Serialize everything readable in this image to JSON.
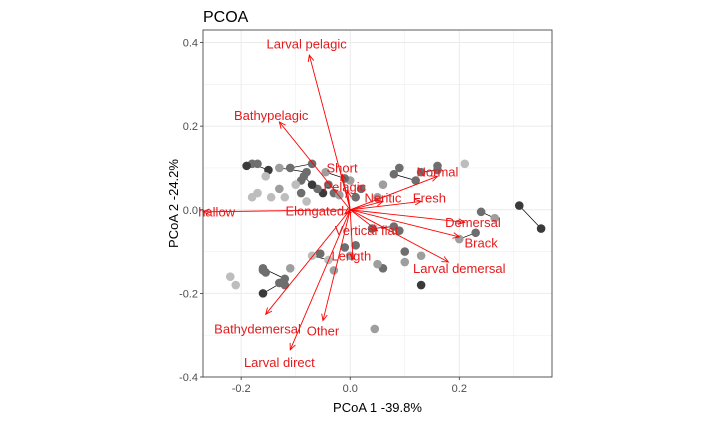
{
  "chart_data": {
    "type": "scatter",
    "title": "PCOA",
    "xlabel": "PCoA 1 -39.8%",
    "ylabel": "PCoA 2 -24.2%",
    "xlim": [
      -0.27,
      0.37
    ],
    "ylim": [
      -0.4,
      0.43
    ],
    "xticks": [
      -0.2,
      0.0,
      0.2
    ],
    "xtick_labels": [
      "-0.2",
      "0.0",
      "0.2"
    ],
    "yticks": [
      -0.4,
      -0.2,
      0.0,
      0.2,
      0.4
    ],
    "ytick_labels": [
      "-0.4",
      "-0.2",
      "0.0",
      "0.2",
      "0.4"
    ],
    "grid": true,
    "colors": {
      "arrow": "#ff0000",
      "label": "#e41a1c",
      "grid": "#ebebeb",
      "panel_border": "#333333",
      "segment": "#000000"
    },
    "loadings": [
      {
        "label": "Larval pelagic",
        "x": -0.075,
        "y": 0.37,
        "lx": -0.08,
        "ly": 0.397
      },
      {
        "label": "Bathypelagic",
        "x": -0.13,
        "y": 0.21,
        "lx": -0.145,
        "ly": 0.225
      },
      {
        "label": "Short",
        "x": -0.015,
        "y": 0.085,
        "lx": -0.015,
        "ly": 0.1
      },
      {
        "label": "Normal",
        "x": 0.16,
        "y": 0.08,
        "lx": 0.16,
        "ly": 0.09
      },
      {
        "label": "Pelagic",
        "x": -0.005,
        "y": 0.045,
        "lx": -0.01,
        "ly": 0.055
      },
      {
        "label": "Neritic",
        "x": 0.06,
        "y": 0.02,
        "lx": 0.06,
        "ly": 0.028
      },
      {
        "label": "Fresh",
        "x": 0.13,
        "y": 0.02,
        "lx": 0.145,
        "ly": 0.028
      },
      {
        "label": "hallow",
        "x": -0.27,
        "y": -0.005,
        "lx": -0.245,
        "ly": -0.005
      },
      {
        "label": "Elongated",
        "x": -0.01,
        "y": -0.01,
        "lx": -0.065,
        "ly": -0.003
      },
      {
        "label": "Demersal",
        "x": 0.21,
        "y": -0.03,
        "lx": 0.225,
        "ly": -0.03
      },
      {
        "label": "Brack",
        "x": 0.2,
        "y": -0.065,
        "lx": 0.24,
        "ly": -0.08
      },
      {
        "label": "Vertical flat",
        "x": 0.05,
        "y": -0.05,
        "lx": 0.03,
        "ly": -0.05
      },
      {
        "label": "Length",
        "x": 0.005,
        "y": -0.12,
        "lx": 0.002,
        "ly": -0.11
      },
      {
        "label": "Larval demersal",
        "x": 0.18,
        "y": -0.125,
        "lx": 0.2,
        "ly": -0.14
      },
      {
        "label": "Bathydemersal",
        "x": -0.155,
        "y": -0.25,
        "lx": -0.17,
        "ly": -0.285
      },
      {
        "label": "Other",
        "x": -0.05,
        "y": -0.265,
        "lx": -0.05,
        "ly": -0.29
      },
      {
        "label": "Larval direct",
        "x": -0.11,
        "y": -0.335,
        "lx": -0.13,
        "ly": -0.365
      }
    ],
    "segments": [
      {
        "x1": -0.18,
        "y1": 0.11,
        "x2": -0.15,
        "y2": 0.095
      },
      {
        "x1": -0.13,
        "y1": 0.1,
        "x2": -0.08,
        "y2": 0.09
      },
      {
        "x1": -0.11,
        "y1": 0.1,
        "x2": -0.07,
        "y2": 0.11
      },
      {
        "x1": -0.045,
        "y1": 0.09,
        "x2": -0.01,
        "y2": 0.075
      },
      {
        "x1": 0.08,
        "y1": 0.085,
        "x2": 0.12,
        "y2": 0.07
      },
      {
        "x1": 0.13,
        "y1": 0.09,
        "x2": 0.16,
        "y2": 0.095
      },
      {
        "x1": 0.31,
        "y1": 0.01,
        "x2": 0.35,
        "y2": -0.045
      },
      {
        "x1": 0.24,
        "y1": -0.005,
        "x2": 0.265,
        "y2": -0.02
      },
      {
        "x1": 0.2,
        "y1": -0.07,
        "x2": 0.23,
        "y2": -0.055
      },
      {
        "x1": 0.04,
        "y1": -0.045,
        "x2": 0.08,
        "y2": -0.04
      },
      {
        "x1": -0.16,
        "y1": -0.14,
        "x2": -0.12,
        "y2": -0.165
      },
      {
        "x1": -0.16,
        "y1": -0.2,
        "x2": -0.12,
        "y2": -0.17
      },
      {
        "x1": -0.07,
        "y1": -0.11,
        "x2": -0.04,
        "y2": -0.12
      },
      {
        "x1": -0.085,
        "y1": 0.08,
        "x2": -0.07,
        "y2": 0.06
      }
    ],
    "points": [
      {
        "x": -0.22,
        "y": -0.16,
        "shade": "#bdbdbd"
      },
      {
        "x": -0.21,
        "y": -0.18,
        "shade": "#bdbdbd"
      },
      {
        "x": -0.16,
        "y": -0.14,
        "shade": "#6e6e6e"
      },
      {
        "x": -0.16,
        "y": -0.145,
        "shade": "#6e6e6e"
      },
      {
        "x": -0.155,
        "y": -0.15,
        "shade": "#6e6e6e"
      },
      {
        "x": -0.16,
        "y": -0.2,
        "shade": "#3a3a3a"
      },
      {
        "x": -0.13,
        "y": -0.175,
        "shade": "#6e6e6e"
      },
      {
        "x": -0.12,
        "y": -0.165,
        "shade": "#6e6e6e"
      },
      {
        "x": -0.12,
        "y": -0.18,
        "shade": "#6e6e6e"
      },
      {
        "x": -0.11,
        "y": -0.14,
        "shade": "#9e9e9e"
      },
      {
        "x": -0.07,
        "y": -0.11,
        "shade": "#bdbdbd"
      },
      {
        "x": -0.04,
        "y": -0.12,
        "shade": "#bdbdbd"
      },
      {
        "x": -0.055,
        "y": -0.105,
        "shade": "#6e6e6e"
      },
      {
        "x": -0.03,
        "y": -0.145,
        "shade": "#9e9e9e"
      },
      {
        "x": -0.01,
        "y": -0.09,
        "shade": "#6e6e6e"
      },
      {
        "x": 0.0,
        "y": -0.11,
        "shade": "#9e9e9e"
      },
      {
        "x": 0.01,
        "y": -0.085,
        "shade": "#6e6e6e"
      },
      {
        "x": 0.045,
        "y": -0.285,
        "shade": "#9e9e9e"
      },
      {
        "x": 0.06,
        "y": -0.14,
        "shade": "#6e6e6e"
      },
      {
        "x": 0.05,
        "y": -0.13,
        "shade": "#9e9e9e"
      },
      {
        "x": 0.1,
        "y": -0.1,
        "shade": "#6e6e6e"
      },
      {
        "x": 0.1,
        "y": -0.125,
        "shade": "#9e9e9e"
      },
      {
        "x": 0.13,
        "y": -0.11,
        "shade": "#9e9e9e"
      },
      {
        "x": 0.13,
        "y": -0.18,
        "shade": "#3a3a3a"
      },
      {
        "x": 0.04,
        "y": -0.045,
        "shade": "#6e6e6e"
      },
      {
        "x": 0.08,
        "y": -0.04,
        "shade": "#6e6e6e"
      },
      {
        "x": 0.09,
        "y": -0.05,
        "shade": "#6e6e6e"
      },
      {
        "x": 0.2,
        "y": -0.07,
        "shade": "#9e9e9e"
      },
      {
        "x": 0.23,
        "y": -0.055,
        "shade": "#6e6e6e"
      },
      {
        "x": 0.24,
        "y": -0.005,
        "shade": "#6e6e6e"
      },
      {
        "x": 0.265,
        "y": -0.02,
        "shade": "#9e9e9e"
      },
      {
        "x": 0.31,
        "y": 0.01,
        "shade": "#3a3a3a"
      },
      {
        "x": 0.35,
        "y": -0.045,
        "shade": "#3a3a3a"
      },
      {
        "x": 0.21,
        "y": 0.11,
        "shade": "#bdbdbd"
      },
      {
        "x": 0.16,
        "y": 0.105,
        "shade": "#6e6e6e"
      },
      {
        "x": 0.13,
        "y": 0.09,
        "shade": "#6e6e6e"
      },
      {
        "x": 0.16,
        "y": 0.095,
        "shade": "#6e6e6e"
      },
      {
        "x": 0.12,
        "y": 0.07,
        "shade": "#6e6e6e"
      },
      {
        "x": 0.08,
        "y": 0.085,
        "shade": "#6e6e6e"
      },
      {
        "x": 0.09,
        "y": 0.1,
        "shade": "#6e6e6e"
      },
      {
        "x": 0.06,
        "y": 0.06,
        "shade": "#9e9e9e"
      },
      {
        "x": 0.05,
        "y": 0.03,
        "shade": "#9e9e9e"
      },
      {
        "x": 0.02,
        "y": 0.05,
        "shade": "#6e6e6e"
      },
      {
        "x": 0.0,
        "y": 0.07,
        "shade": "#9e9e9e"
      },
      {
        "x": -0.01,
        "y": 0.075,
        "shade": "#6e6e6e"
      },
      {
        "x": -0.045,
        "y": 0.09,
        "shade": "#9e9e9e"
      },
      {
        "x": -0.04,
        "y": 0.06,
        "shade": "#6e6e6e"
      },
      {
        "x": -0.05,
        "y": 0.04,
        "shade": "#3a3a3a"
      },
      {
        "x": -0.06,
        "y": 0.05,
        "shade": "#6e6e6e"
      },
      {
        "x": -0.07,
        "y": 0.06,
        "shade": "#3a3a3a"
      },
      {
        "x": -0.085,
        "y": 0.08,
        "shade": "#6e6e6e"
      },
      {
        "x": -0.08,
        "y": 0.09,
        "shade": "#6e6e6e"
      },
      {
        "x": -0.07,
        "y": 0.11,
        "shade": "#6e6e6e"
      },
      {
        "x": -0.09,
        "y": 0.07,
        "shade": "#6e6e6e"
      },
      {
        "x": -0.1,
        "y": 0.06,
        "shade": "#bdbdbd"
      },
      {
        "x": -0.11,
        "y": 0.1,
        "shade": "#6e6e6e"
      },
      {
        "x": -0.13,
        "y": 0.1,
        "shade": "#9e9e9e"
      },
      {
        "x": -0.13,
        "y": 0.05,
        "shade": "#9e9e9e"
      },
      {
        "x": -0.15,
        "y": 0.095,
        "shade": "#3a3a3a"
      },
      {
        "x": -0.155,
        "y": 0.08,
        "shade": "#bdbdbd"
      },
      {
        "x": -0.17,
        "y": 0.11,
        "shade": "#6e6e6e"
      },
      {
        "x": -0.18,
        "y": 0.11,
        "shade": "#6e6e6e"
      },
      {
        "x": -0.19,
        "y": 0.105,
        "shade": "#3a3a3a"
      },
      {
        "x": -0.17,
        "y": 0.04,
        "shade": "#bdbdbd"
      },
      {
        "x": -0.145,
        "y": 0.03,
        "shade": "#bdbdbd"
      },
      {
        "x": -0.12,
        "y": 0.03,
        "shade": "#bdbdbd"
      },
      {
        "x": -0.18,
        "y": 0.03,
        "shade": "#bdbdbd"
      },
      {
        "x": -0.08,
        "y": 0.02,
        "shade": "#bdbdbd"
      },
      {
        "x": -0.09,
        "y": 0.04,
        "shade": "#6e6e6e"
      },
      {
        "x": -0.03,
        "y": 0.04,
        "shade": "#6e6e6e"
      },
      {
        "x": -0.02,
        "y": 0.035,
        "shade": "#9e9e9e"
      },
      {
        "x": 0.01,
        "y": 0.03,
        "shade": "#6e6e6e"
      }
    ]
  }
}
